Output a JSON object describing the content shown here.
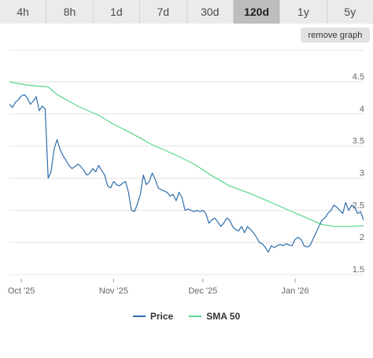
{
  "range_tabs": [
    {
      "label": "4h",
      "active": false
    },
    {
      "label": "8h",
      "active": false
    },
    {
      "label": "1d",
      "active": false
    },
    {
      "label": "7d",
      "active": false
    },
    {
      "label": "30d",
      "active": false
    },
    {
      "label": "120d",
      "active": true
    },
    {
      "label": "1y",
      "active": false
    },
    {
      "label": "5y",
      "active": false
    }
  ],
  "remove_graph_label": "remove graph",
  "colors": {
    "price": "#2f6eab",
    "sma": "#57d68c",
    "grid": "#e4e4e4",
    "active_tab": "#bdbdbd"
  },
  "chart_data": {
    "type": "line",
    "title": "",
    "xlabel": "",
    "ylabel": "",
    "x_start": "2025-09-27",
    "x_end": "2026-01-24",
    "x_ticks": [
      {
        "label": "Oct '25",
        "date": "2025-10-01"
      },
      {
        "label": "Nov '25",
        "date": "2025-11-01"
      },
      {
        "label": "Dec '25",
        "date": "2025-12-01"
      },
      {
        "label": "Jan '26",
        "date": "2026-01-01"
      }
    ],
    "y_ticks": [
      "1.5",
      "2",
      "2.5",
      "3",
      "3.5",
      "4",
      "4.5"
    ],
    "ylim": [
      1.5,
      4.5
    ],
    "legend_position": "bottom",
    "series": [
      {
        "name": "Price",
        "color": "#2f6eab",
        "points": [
          [
            "2025-09-27",
            4.15
          ],
          [
            "2025-09-28",
            4.1
          ],
          [
            "2025-09-29",
            4.18
          ],
          [
            "2025-09-30",
            4.22
          ],
          [
            "2025-10-01",
            4.28
          ],
          [
            "2025-10-02",
            4.3
          ],
          [
            "2025-10-03",
            4.25
          ],
          [
            "2025-10-04",
            4.15
          ],
          [
            "2025-10-05",
            4.2
          ],
          [
            "2025-10-06",
            4.27
          ],
          [
            "2025-10-07",
            4.05
          ],
          [
            "2025-10-08",
            4.12
          ],
          [
            "2025-10-09",
            4.08
          ],
          [
            "2025-10-10",
            3.0
          ],
          [
            "2025-10-11",
            3.1
          ],
          [
            "2025-10-12",
            3.45
          ],
          [
            "2025-10-13",
            3.6
          ],
          [
            "2025-10-14",
            3.45
          ],
          [
            "2025-10-15",
            3.35
          ],
          [
            "2025-10-16",
            3.28
          ],
          [
            "2025-10-17",
            3.2
          ],
          [
            "2025-10-18",
            3.15
          ],
          [
            "2025-10-19",
            3.18
          ],
          [
            "2025-10-20",
            3.22
          ],
          [
            "2025-10-21",
            3.18
          ],
          [
            "2025-10-22",
            3.12
          ],
          [
            "2025-10-23",
            3.05
          ],
          [
            "2025-10-24",
            3.08
          ],
          [
            "2025-10-25",
            3.15
          ],
          [
            "2025-10-26",
            3.1
          ],
          [
            "2025-10-27",
            3.2
          ],
          [
            "2025-10-28",
            3.12
          ],
          [
            "2025-10-29",
            3.05
          ],
          [
            "2025-10-30",
            2.88
          ],
          [
            "2025-10-31",
            2.85
          ],
          [
            "2025-11-01",
            2.95
          ],
          [
            "2025-11-02",
            2.9
          ],
          [
            "2025-11-03",
            2.88
          ],
          [
            "2025-11-04",
            2.92
          ],
          [
            "2025-11-05",
            2.95
          ],
          [
            "2025-11-06",
            2.78
          ],
          [
            "2025-11-07",
            2.5
          ],
          [
            "2025-11-08",
            2.48
          ],
          [
            "2025-11-09",
            2.6
          ],
          [
            "2025-11-10",
            2.75
          ],
          [
            "2025-11-11",
            3.05
          ],
          [
            "2025-11-12",
            2.9
          ],
          [
            "2025-11-13",
            2.95
          ],
          [
            "2025-11-14",
            3.08
          ],
          [
            "2025-11-15",
            2.98
          ],
          [
            "2025-11-16",
            2.85
          ],
          [
            "2025-11-17",
            2.82
          ],
          [
            "2025-11-18",
            2.8
          ],
          [
            "2025-11-19",
            2.78
          ],
          [
            "2025-11-20",
            2.72
          ],
          [
            "2025-11-21",
            2.75
          ],
          [
            "2025-11-22",
            2.65
          ],
          [
            "2025-11-23",
            2.78
          ],
          [
            "2025-11-24",
            2.7
          ],
          [
            "2025-11-25",
            2.5
          ],
          [
            "2025-11-26",
            2.52
          ],
          [
            "2025-11-27",
            2.5
          ],
          [
            "2025-11-28",
            2.48
          ],
          [
            "2025-11-29",
            2.5
          ],
          [
            "2025-11-30",
            2.48
          ],
          [
            "2025-12-01",
            2.5
          ],
          [
            "2025-12-02",
            2.45
          ],
          [
            "2025-12-03",
            2.3
          ],
          [
            "2025-12-04",
            2.35
          ],
          [
            "2025-12-05",
            2.38
          ],
          [
            "2025-12-06",
            2.32
          ],
          [
            "2025-12-07",
            2.25
          ],
          [
            "2025-12-08",
            2.3
          ],
          [
            "2025-12-09",
            2.38
          ],
          [
            "2025-12-10",
            2.35
          ],
          [
            "2025-12-11",
            2.25
          ],
          [
            "2025-12-12",
            2.2
          ],
          [
            "2025-12-13",
            2.18
          ],
          [
            "2025-12-14",
            2.25
          ],
          [
            "2025-12-15",
            2.15
          ],
          [
            "2025-12-16",
            2.25
          ],
          [
            "2025-12-17",
            2.2
          ],
          [
            "2025-12-18",
            2.15
          ],
          [
            "2025-12-19",
            2.08
          ],
          [
            "2025-12-20",
            2.0
          ],
          [
            "2025-12-21",
            1.98
          ],
          [
            "2025-12-22",
            1.92
          ],
          [
            "2025-12-23",
            1.85
          ],
          [
            "2025-12-24",
            1.95
          ],
          [
            "2025-12-25",
            1.92
          ],
          [
            "2025-12-26",
            1.95
          ],
          [
            "2025-12-27",
            1.97
          ],
          [
            "2025-12-28",
            1.95
          ],
          [
            "2025-12-29",
            1.98
          ],
          [
            "2025-12-30",
            1.96
          ],
          [
            "2025-12-31",
            1.95
          ],
          [
            "2026-01-01",
            2.05
          ],
          [
            "2026-01-02",
            2.08
          ],
          [
            "2026-01-03",
            2.05
          ],
          [
            "2026-01-04",
            1.95
          ],
          [
            "2026-01-05",
            1.93
          ],
          [
            "2026-01-06",
            1.95
          ],
          [
            "2026-01-07",
            2.05
          ],
          [
            "2026-01-08",
            2.15
          ],
          [
            "2026-01-09",
            2.25
          ],
          [
            "2026-01-10",
            2.35
          ],
          [
            "2026-01-11",
            2.38
          ],
          [
            "2026-01-12",
            2.45
          ],
          [
            "2026-01-13",
            2.5
          ],
          [
            "2026-01-14",
            2.58
          ],
          [
            "2026-01-15",
            2.55
          ],
          [
            "2026-01-16",
            2.5
          ],
          [
            "2026-01-17",
            2.45
          ],
          [
            "2026-01-18",
            2.62
          ],
          [
            "2026-01-19",
            2.5
          ],
          [
            "2026-01-20",
            2.58
          ],
          [
            "2026-01-21",
            2.55
          ],
          [
            "2026-01-22",
            2.45
          ],
          [
            "2026-01-23",
            2.48
          ],
          [
            "2026-01-24",
            2.35
          ]
        ]
      },
      {
        "name": "SMA 50",
        "color": "#57d68c",
        "points": [
          [
            "2025-09-27",
            4.5
          ],
          [
            "2025-10-03",
            4.45
          ],
          [
            "2025-10-10",
            4.42
          ],
          [
            "2025-10-13",
            4.3
          ],
          [
            "2025-10-20",
            4.12
          ],
          [
            "2025-10-27",
            3.98
          ],
          [
            "2025-11-01",
            3.84
          ],
          [
            "2025-11-07",
            3.7
          ],
          [
            "2025-11-14",
            3.52
          ],
          [
            "2025-11-21",
            3.38
          ],
          [
            "2025-11-28",
            3.22
          ],
          [
            "2025-12-04",
            3.04
          ],
          [
            "2025-12-10",
            2.88
          ],
          [
            "2025-12-17",
            2.76
          ],
          [
            "2025-12-24",
            2.62
          ],
          [
            "2025-12-31",
            2.48
          ],
          [
            "2026-01-06",
            2.36
          ],
          [
            "2026-01-10",
            2.28
          ],
          [
            "2026-01-14",
            2.25
          ],
          [
            "2026-01-19",
            2.25
          ],
          [
            "2026-01-24",
            2.26
          ]
        ]
      }
    ]
  }
}
